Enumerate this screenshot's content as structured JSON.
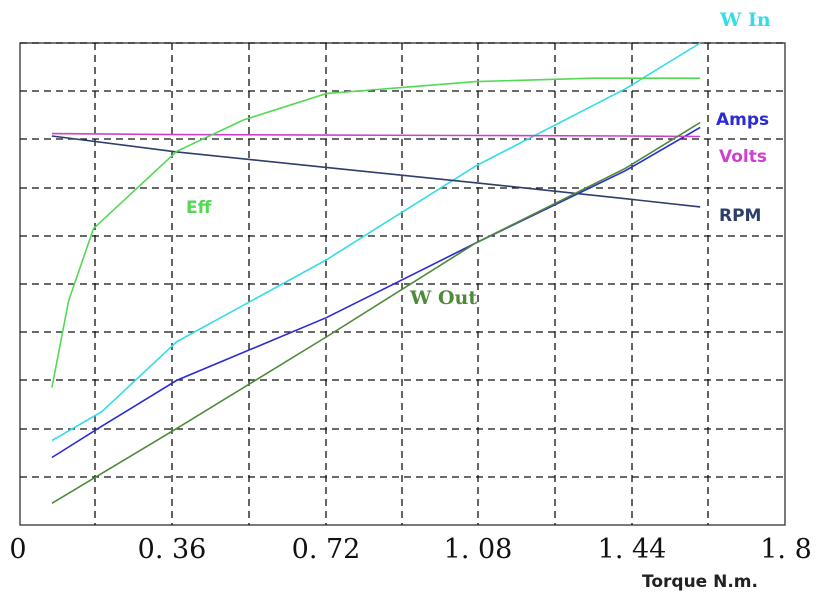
{
  "chart_data": {
    "type": "line",
    "xlabel": "Torque N.m.",
    "xlim": [
      0,
      1.8
    ],
    "x_ticks": [
      "0",
      "0. 36",
      "0. 72",
      "1. 08",
      "1. 44",
      "1. 8"
    ],
    "grid": true,
    "series": [
      {
        "name": "W In",
        "color": "#33dde6",
        "x": [
          0.06,
          0.18,
          0.36,
          0.72,
          1.08,
          1.44,
          1.62
        ],
        "y": [
          0.175,
          0.235,
          0.38,
          0.55,
          0.745,
          0.905,
          1.0
        ]
      },
      {
        "name": "Amps",
        "color": "#2b2bd6",
        "x": [
          0.06,
          0.18,
          0.36,
          0.72,
          1.08,
          1.44,
          1.62
        ],
        "y": [
          0.14,
          0.205,
          0.3,
          0.43,
          0.585,
          0.735,
          0.825
        ]
      },
      {
        "name": "Volts",
        "color": "#d040d0",
        "x": [
          0.06,
          0.36,
          0.72,
          1.08,
          1.44,
          1.62
        ],
        "y": [
          0.812,
          0.81,
          0.809,
          0.808,
          0.807,
          0.806
        ]
      },
      {
        "name": "RPM",
        "color": "#2c3f6a",
        "x": [
          0.06,
          0.36,
          0.72,
          1.08,
          1.44,
          1.62
        ],
        "y": [
          0.807,
          0.774,
          0.742,
          0.71,
          0.677,
          0.66
        ]
      },
      {
        "name": "Eff",
        "color": "#55d855",
        "x": [
          0.06,
          0.1,
          0.16,
          0.36,
          0.52,
          0.72,
          1.08,
          1.36,
          1.62
        ],
        "y": [
          0.285,
          0.465,
          0.615,
          0.775,
          0.84,
          0.895,
          0.92,
          0.927,
          0.927
        ]
      },
      {
        "name": "W Out",
        "color": "#4e8a3a",
        "x": [
          0.06,
          0.36,
          0.72,
          1.08,
          1.44,
          1.62
        ],
        "y": [
          0.045,
          0.2,
          0.39,
          0.585,
          0.74,
          0.835
        ]
      }
    ],
    "annotations": [
      "W In",
      "Amps",
      "Volts",
      "RPM",
      "Eff",
      "W Out"
    ]
  }
}
